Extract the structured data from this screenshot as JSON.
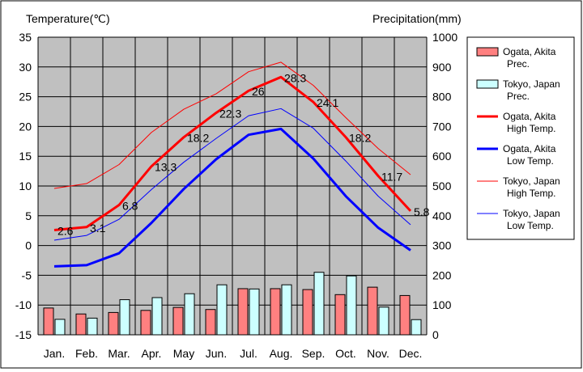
{
  "chart_data": {
    "type": "bar+line",
    "ylabel_left": "Temperature(℃)",
    "ylabel_right": "Precipitation(mm)",
    "ylim_left": [
      -15,
      35
    ],
    "ylim_right": [
      0,
      1000
    ],
    "yticks_left": [
      "35",
      "30",
      "25",
      "20",
      "15",
      "10",
      "5",
      "0",
      "-5",
      "-10",
      "-15"
    ],
    "yticks_right": [
      "1000",
      "900",
      "800",
      "700",
      "600",
      "500",
      "400",
      "300",
      "200",
      "100",
      "0"
    ],
    "categories": [
      "Jan.",
      "Feb.",
      "Mar.",
      "Apr.",
      "May",
      "Jun.",
      "Jul.",
      "Aug.",
      "Sep.",
      "Oct.",
      "Nov.",
      "Dec."
    ],
    "grid": true,
    "legend_position": "right",
    "plot_background": "#c0c0c0",
    "bar_series": [
      {
        "name": "Ogata, Akita Prec.",
        "legend_lines": [
          "Ogata, Akita",
          "Prec."
        ],
        "color": "#ff8080",
        "values": [
          90,
          70,
          75,
          82,
          92,
          85,
          155,
          155,
          152,
          135,
          160,
          132
        ]
      },
      {
        "name": "Tokyo, Japan Prec.",
        "legend_lines": [
          "Tokyo, Japan",
          "Prec."
        ],
        "color": "#ccffff",
        "values": [
          52,
          56,
          118,
          125,
          138,
          168,
          154,
          168,
          210,
          198,
          93,
          51
        ]
      }
    ],
    "line_series": [
      {
        "name": "Ogata, Akita High Temp.",
        "legend_lines": [
          "Ogata, Akita",
          "High Temp."
        ],
        "color": "#ff0000",
        "width": 3,
        "values": [
          2.6,
          3.1,
          6.8,
          13.3,
          18.2,
          22.3,
          26,
          28.3,
          24.1,
          18.2,
          11.7,
          5.8
        ],
        "labels": [
          "2.6",
          "3.1",
          "6.8",
          "13.3",
          "18.2",
          "22.3",
          "26",
          "28.3",
          "24.1",
          "18.2",
          "11.7",
          "5.8"
        ]
      },
      {
        "name": "Ogata, Akita Low Temp.",
        "legend_lines": [
          "Ogata, Akita",
          "Low Temp."
        ],
        "color": "#0000ff",
        "width": 3,
        "values": [
          -3.5,
          -3.3,
          -1.3,
          3.8,
          9.5,
          14.5,
          18.6,
          19.6,
          14.6,
          8.3,
          3.0,
          -0.8
        ]
      },
      {
        "name": "Tokyo, Japan High Temp.",
        "legend_lines": [
          "Tokyo, Japan",
          "High Temp."
        ],
        "color": "#ff0000",
        "width": 1,
        "values": [
          9.6,
          10.4,
          13.6,
          19.0,
          22.9,
          25.5,
          29.2,
          30.8,
          26.9,
          21.5,
          16.3,
          11.9
        ]
      },
      {
        "name": "Tokyo, Japan Low Temp.",
        "legend_lines": [
          "Tokyo, Japan",
          "Low Temp."
        ],
        "color": "#0000ff",
        "width": 1,
        "values": [
          0.9,
          1.7,
          4.4,
          9.4,
          14.0,
          18.0,
          21.8,
          23.0,
          19.7,
          14.2,
          8.3,
          3.5
        ]
      }
    ]
  }
}
